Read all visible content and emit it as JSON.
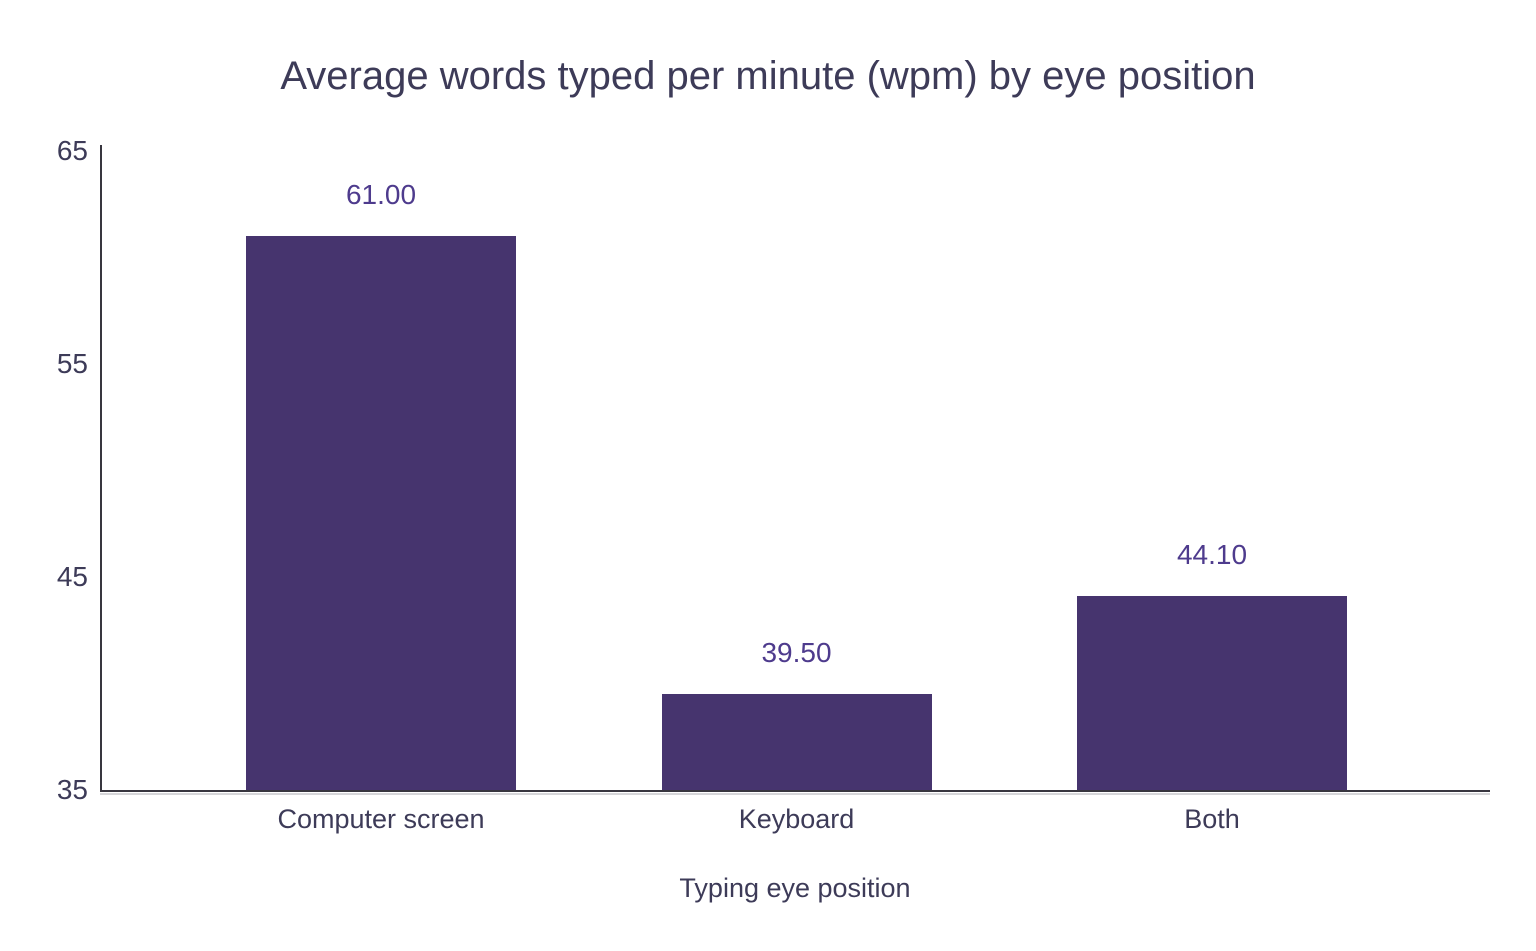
{
  "chart_data": {
    "type": "bar",
    "title": "Average words typed per minute (wpm) by eye position",
    "xlabel": "Typing eye position",
    "ylabel": "",
    "categories": [
      "Computer screen",
      "Keyboard",
      "Both"
    ],
    "values": [
      61.0,
      39.5,
      44.1
    ],
    "value_labels": [
      "61.00",
      "39.50",
      "44.10"
    ],
    "ylim": [
      35,
      65
    ],
    "yticks": [
      65,
      55,
      45,
      35
    ],
    "grid": false,
    "legend": "none",
    "colors": {
      "bar": "#46346e",
      "value_label": "#4e3b8d",
      "text": "#3d3b58",
      "axis": "#38363f",
      "background": "#ffffff"
    }
  }
}
